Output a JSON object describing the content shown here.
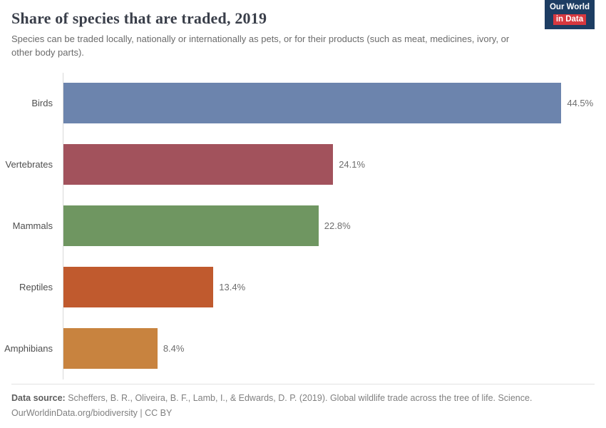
{
  "header": {
    "title": "Share of species that are traded, 2019",
    "subtitle": "Species can be traded locally, nationally or internationally as pets, or for their products (such as meat, medicines, ivory, or other body parts).",
    "logo": {
      "line1": "Our World",
      "line2": "in Data"
    }
  },
  "chart_data": {
    "type": "bar",
    "orientation": "horizontal",
    "title": "Share of species that are traded, 2019",
    "categories": [
      "Birds",
      "Vertebrates",
      "Mammals",
      "Reptiles",
      "Amphibians"
    ],
    "values": [
      44.5,
      24.1,
      22.8,
      13.4,
      8.4
    ],
    "value_labels": [
      "44.5%",
      "24.1%",
      "22.8%",
      "13.4%",
      "8.4%"
    ],
    "colors": [
      "#6c84ad",
      "#a2525c",
      "#6f9661",
      "#c05a2e",
      "#c8833f"
    ],
    "xlabel": "",
    "ylabel": "",
    "xlim": [
      0,
      47.6
    ],
    "grid": false,
    "legend": "none",
    "unit": "%"
  },
  "footer": {
    "datasource_label": "Data source:",
    "datasource_text": " Scheffers, B. R., Oliveira, B. F., Lamb, I., & Edwards, D. P. (2019). Global wildlife trade across the tree of life. Science.",
    "url_text": "OurWorldinData.org/biodiversity",
    "separator": " | ",
    "license_text": "CC BY"
  }
}
